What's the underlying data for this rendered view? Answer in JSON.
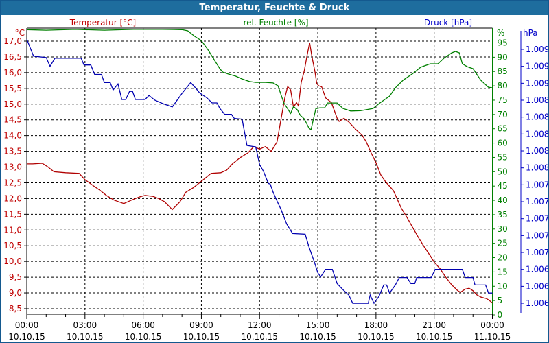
{
  "window": {
    "title": "Temperatur, Feuchte & Druck"
  },
  "chart_data": {
    "type": "line",
    "title": "Temperatur, Feuchte & Druck",
    "grid": "dashed black, horizontal at 0.5 °C steps, vertical every 3 h",
    "legend_position": "headers above plot",
    "x_axis": {
      "span_hours": 24,
      "major_tick_hours": 3,
      "minor_tick_hours": 1,
      "times": [
        "00:00",
        "03:00",
        "06:00",
        "09:00",
        "12:00",
        "15:00",
        "18:00",
        "21:00",
        "00:00"
      ],
      "dates": [
        "10.10.15",
        "10.10.15",
        "10.10.15",
        "10.10.15",
        "10.10.15",
        "10.10.15",
        "10.10.15",
        "10.10.15",
        "11.10.15"
      ]
    },
    "axes": {
      "temperature": {
        "header": "Temperatur [°C]",
        "unit": "°C",
        "color": "#c00000",
        "side": "left",
        "range": [
          8.5,
          17.0
        ],
        "step": 0.5,
        "tick_labels": [
          "17,0",
          "16,5",
          "16,0",
          "15,5",
          "15,0",
          "14,5",
          "14,0",
          "13,5",
          "13,0",
          "12,5",
          "12,0",
          "11,5",
          "11,0",
          "10,5",
          "10,0",
          "9,5",
          "9,0",
          "8,5"
        ]
      },
      "humidity": {
        "header": "rel. Feuchte [%]",
        "unit": "%",
        "color": "#008000",
        "side": "right-inner",
        "range": [
          0,
          95
        ],
        "step": 5,
        "tick_labels": [
          "95",
          "90",
          "85",
          "80",
          "75",
          "70",
          "65",
          "60",
          "55",
          "50",
          "45",
          "40",
          "35",
          "30",
          "25",
          "20",
          "15",
          "10",
          "5",
          "0"
        ]
      },
      "pressure": {
        "header": "Druck [hPa]",
        "unit": "hPa",
        "color": "#0000c8",
        "side": "right-outer",
        "range": [
          1005.5,
          1009.25
        ],
        "step": 0.25,
        "tick_labels": [
          "1.009",
          "1.009",
          "1.009",
          "1.008",
          "1.008",
          "1.008",
          "1.008",
          "1.008",
          "1.007",
          "1.007",
          "1.007",
          "1.007",
          "1.007",
          "1.006",
          "1.006",
          "1.006"
        ]
      }
    },
    "series": [
      {
        "name": "Temperatur",
        "axis": "temperature",
        "unit": "°C",
        "color": "#b00000",
        "points": [
          [
            0,
            13.1
          ],
          [
            0.3,
            13.1
          ],
          [
            0.8,
            13.12
          ],
          [
            1.1,
            13.0
          ],
          [
            1.4,
            12.85
          ],
          [
            2.0,
            12.82
          ],
          [
            2.7,
            12.8
          ],
          [
            3.0,
            12.6
          ],
          [
            3.4,
            12.42
          ],
          [
            3.8,
            12.25
          ],
          [
            4.1,
            12.1
          ],
          [
            4.5,
            11.95
          ],
          [
            5.0,
            11.84
          ],
          [
            5.4,
            11.95
          ],
          [
            5.8,
            12.05
          ],
          [
            6.1,
            12.1
          ],
          [
            6.5,
            12.07
          ],
          [
            6.8,
            12.0
          ],
          [
            7.1,
            11.9
          ],
          [
            7.5,
            11.65
          ],
          [
            7.9,
            11.9
          ],
          [
            8.2,
            12.2
          ],
          [
            8.6,
            12.35
          ],
          [
            9.0,
            12.55
          ],
          [
            9.5,
            12.8
          ],
          [
            10.0,
            12.82
          ],
          [
            10.3,
            12.9
          ],
          [
            10.6,
            13.1
          ],
          [
            11.0,
            13.3
          ],
          [
            11.4,
            13.45
          ],
          [
            11.7,
            13.65
          ],
          [
            12.0,
            13.57
          ],
          [
            12.3,
            13.65
          ],
          [
            12.6,
            13.5
          ],
          [
            12.9,
            13.8
          ],
          [
            13.1,
            14.5
          ],
          [
            13.3,
            15.2
          ],
          [
            13.45,
            15.56
          ],
          [
            13.6,
            15.45
          ],
          [
            13.75,
            14.9
          ],
          [
            13.9,
            15.05
          ],
          [
            14.0,
            14.95
          ],
          [
            14.15,
            15.7
          ],
          [
            14.3,
            16.05
          ],
          [
            14.45,
            16.55
          ],
          [
            14.58,
            16.95
          ],
          [
            14.7,
            16.5
          ],
          [
            14.85,
            16.05
          ],
          [
            14.95,
            15.65
          ],
          [
            15.05,
            15.58
          ],
          [
            15.2,
            15.55
          ],
          [
            15.4,
            15.2
          ],
          [
            15.7,
            15.05
          ],
          [
            16.0,
            14.55
          ],
          [
            16.1,
            14.45
          ],
          [
            16.35,
            14.55
          ],
          [
            16.6,
            14.43
          ],
          [
            16.8,
            14.3
          ],
          [
            17.0,
            14.17
          ],
          [
            17.3,
            14.0
          ],
          [
            17.5,
            13.8
          ],
          [
            17.75,
            13.45
          ],
          [
            18.0,
            13.14
          ],
          [
            18.25,
            12.75
          ],
          [
            18.5,
            12.53
          ],
          [
            18.9,
            12.25
          ],
          [
            19.3,
            11.7
          ],
          [
            19.6,
            11.4
          ],
          [
            19.9,
            11.07
          ],
          [
            20.2,
            10.75
          ],
          [
            20.5,
            10.45
          ],
          [
            20.8,
            10.18
          ],
          [
            21.0,
            9.98
          ],
          [
            21.3,
            9.77
          ],
          [
            21.6,
            9.5
          ],
          [
            21.9,
            9.26
          ],
          [
            22.2,
            9.08
          ],
          [
            22.35,
            9.02
          ],
          [
            22.6,
            9.12
          ],
          [
            22.8,
            9.15
          ],
          [
            23.0,
            9.07
          ],
          [
            23.2,
            8.94
          ],
          [
            23.4,
            8.87
          ],
          [
            23.7,
            8.82
          ],
          [
            23.85,
            8.76
          ],
          [
            24,
            8.68
          ]
        ]
      },
      {
        "name": "rel. Feuchte",
        "axis": "humidity",
        "unit": "%",
        "color": "#008000",
        "points": [
          [
            0,
            99.6
          ],
          [
            1.0,
            99.4
          ],
          [
            2.5,
            99.7
          ],
          [
            4.0,
            99.4
          ],
          [
            5.5,
            99.7
          ],
          [
            7.0,
            99.7
          ],
          [
            8.0,
            99.6
          ],
          [
            8.3,
            99.2
          ],
          [
            8.65,
            97.3
          ],
          [
            9.0,
            95.8
          ],
          [
            9.35,
            92.5
          ],
          [
            9.66,
            89.1
          ],
          [
            9.95,
            86.0
          ],
          [
            10.1,
            84.8
          ],
          [
            10.4,
            84.1
          ],
          [
            10.76,
            83.4
          ],
          [
            11.1,
            82.4
          ],
          [
            11.47,
            81.5
          ],
          [
            11.8,
            81.2
          ],
          [
            12.3,
            81.2
          ],
          [
            12.7,
            81.0
          ],
          [
            12.95,
            80.0
          ],
          [
            13.25,
            74.0
          ],
          [
            13.6,
            70.4
          ],
          [
            13.75,
            72.8
          ],
          [
            13.95,
            71.6
          ],
          [
            14.1,
            69.7
          ],
          [
            14.3,
            68.5
          ],
          [
            14.55,
            65.2
          ],
          [
            14.65,
            64.7
          ],
          [
            14.9,
            72.0
          ],
          [
            15.1,
            72.3
          ],
          [
            15.35,
            72.3
          ],
          [
            15.5,
            74.0
          ],
          [
            16.0,
            74.0
          ],
          [
            16.3,
            72.1
          ],
          [
            16.7,
            71.2
          ],
          [
            17.2,
            71.3
          ],
          [
            17.85,
            72.1
          ],
          [
            18.2,
            74.0
          ],
          [
            18.7,
            76.4
          ],
          [
            19.0,
            79.3
          ],
          [
            19.4,
            82.0
          ],
          [
            19.9,
            84.3
          ],
          [
            20.3,
            86.5
          ],
          [
            20.8,
            87.7
          ],
          [
            21.2,
            87.7
          ],
          [
            21.5,
            89.6
          ],
          [
            21.9,
            91.5
          ],
          [
            22.1,
            92.0
          ],
          [
            22.3,
            91.5
          ],
          [
            22.45,
            87.7
          ],
          [
            22.7,
            86.7
          ],
          [
            23.0,
            86.0
          ],
          [
            23.4,
            82.0
          ],
          [
            23.8,
            79.5
          ],
          [
            24,
            79.3
          ]
        ]
      },
      {
        "name": "Druck",
        "axis": "pressure",
        "unit": "hPa",
        "color": "#0000b0",
        "points": [
          [
            0,
            1009.4
          ],
          [
            0.35,
            1009.15
          ],
          [
            1.0,
            1009.13
          ],
          [
            1.2,
            1009.0
          ],
          [
            1.45,
            1009.12
          ],
          [
            2.8,
            1009.12
          ],
          [
            2.95,
            1009.02
          ],
          [
            3.3,
            1009.02
          ],
          [
            3.5,
            1008.88
          ],
          [
            3.85,
            1008.88
          ],
          [
            4.0,
            1008.76
          ],
          [
            4.3,
            1008.76
          ],
          [
            4.45,
            1008.65
          ],
          [
            4.7,
            1008.74
          ],
          [
            4.9,
            1008.51
          ],
          [
            5.1,
            1008.51
          ],
          [
            5.3,
            1008.63
          ],
          [
            5.45,
            1008.63
          ],
          [
            5.6,
            1008.51
          ],
          [
            6.1,
            1008.51
          ],
          [
            6.3,
            1008.57
          ],
          [
            6.6,
            1008.5
          ],
          [
            7.0,
            1008.45
          ],
          [
            7.5,
            1008.4
          ],
          [
            8.0,
            1008.6
          ],
          [
            8.45,
            1008.76
          ],
          [
            8.7,
            1008.68
          ],
          [
            8.9,
            1008.61
          ],
          [
            9.3,
            1008.53
          ],
          [
            9.55,
            1008.46
          ],
          [
            9.8,
            1008.46
          ],
          [
            9.95,
            1008.38
          ],
          [
            10.2,
            1008.29
          ],
          [
            10.55,
            1008.29
          ],
          [
            10.7,
            1008.23
          ],
          [
            11.1,
            1008.22
          ],
          [
            11.35,
            1007.83
          ],
          [
            11.8,
            1007.81
          ],
          [
            12.0,
            1007.55
          ],
          [
            12.2,
            1007.45
          ],
          [
            12.45,
            1007.27
          ],
          [
            12.55,
            1007.26
          ],
          [
            12.7,
            1007.14
          ],
          [
            12.9,
            1007.01
          ],
          [
            13.1,
            1006.89
          ],
          [
            13.4,
            1006.67
          ],
          [
            13.7,
            1006.53
          ],
          [
            14.35,
            1006.52
          ],
          [
            14.55,
            1006.33
          ],
          [
            14.8,
            1006.13
          ],
          [
            15.0,
            1005.95
          ],
          [
            15.15,
            1005.89
          ],
          [
            15.4,
            1006.0
          ],
          [
            15.75,
            1006.0
          ],
          [
            16.0,
            1005.79
          ],
          [
            16.3,
            1005.7
          ],
          [
            16.6,
            1005.62
          ],
          [
            16.8,
            1005.5
          ],
          [
            17.6,
            1005.5
          ],
          [
            17.7,
            1005.62
          ],
          [
            17.9,
            1005.5
          ],
          [
            18.15,
            1005.6
          ],
          [
            18.4,
            1005.77
          ],
          [
            18.55,
            1005.77
          ],
          [
            18.7,
            1005.65
          ],
          [
            19.0,
            1005.77
          ],
          [
            19.2,
            1005.88
          ],
          [
            19.6,
            1005.88
          ],
          [
            19.8,
            1005.79
          ],
          [
            20.0,
            1005.79
          ],
          [
            20.1,
            1005.88
          ],
          [
            20.85,
            1005.88
          ],
          [
            21.05,
            1006.0
          ],
          [
            22.45,
            1006.0
          ],
          [
            22.6,
            1005.88
          ],
          [
            23.0,
            1005.88
          ],
          [
            23.1,
            1005.77
          ],
          [
            23.65,
            1005.77
          ],
          [
            23.8,
            1005.65
          ],
          [
            24,
            1005.65
          ]
        ]
      }
    ]
  },
  "colors": {
    "titlebar_bg": "#1e6d9e",
    "titlebar_text": "#ffffff",
    "window_border": "#14598f",
    "grid": "#000000",
    "plot_bg": "#ffffff",
    "time_label": "#000000"
  }
}
